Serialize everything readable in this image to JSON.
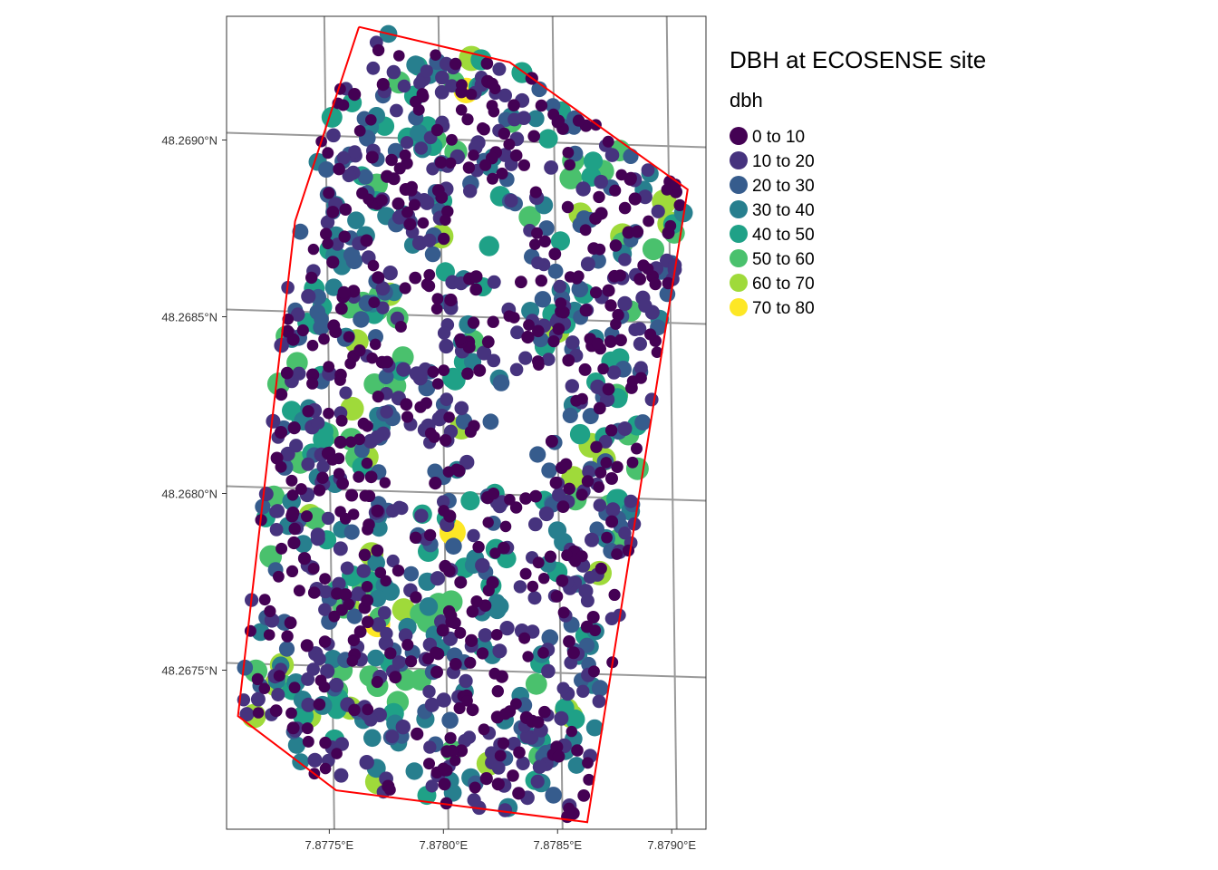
{
  "chart_data": {
    "type": "scatter",
    "title": "DBH at ECOSENSE site",
    "legend": {
      "title": "dbh",
      "placement": "right",
      "entries": [
        {
          "label": "0 to 10",
          "color": "#440154"
        },
        {
          "label": "10 to 20",
          "color": "#46337E"
        },
        {
          "label": "20 to 30",
          "color": "#365C8D"
        },
        {
          "label": "30 to 40",
          "color": "#277F8E"
        },
        {
          "label": "40 to 50",
          "color": "#1FA187"
        },
        {
          "label": "50 to 60",
          "color": "#4AC16D"
        },
        {
          "label": "60 to 70",
          "color": "#9FDA3A"
        },
        {
          "label": "70 to 80",
          "color": "#FDE725"
        }
      ]
    },
    "x_ticks": [
      "7.8775°E",
      "7.8780°E",
      "7.8785°E",
      "7.8790°E"
    ],
    "x_tick_values": [
      7.8775,
      7.878,
      7.8785,
      7.879
    ],
    "y_ticks": [
      "48.2675°N",
      "48.2680°N",
      "48.2685°N",
      "48.2690°N"
    ],
    "y_tick_values": [
      48.2675,
      48.268,
      48.2685,
      48.269
    ],
    "xlim": [
      7.87705,
      7.87915
    ],
    "ylim": [
      48.26705,
      48.26935
    ],
    "grid": true,
    "boundary": {
      "color": "#FF0000",
      "vertices": [
        [
          7.87763,
          48.26932
        ],
        [
          7.87829,
          48.26922
        ],
        [
          7.87907,
          48.26886
        ],
        [
          7.87863,
          48.26707
        ],
        [
          7.87753,
          48.26716
        ],
        [
          7.8771,
          48.26737
        ],
        [
          7.87735,
          48.26877
        ],
        [
          7.87763,
          48.26932
        ]
      ]
    },
    "points": [
      {
        "lon": 7.87771,
        "lat": 48.26763,
        "dbh": 74
      },
      {
        "lon": 7.87804,
        "lat": 48.26789,
        "dbh": 76
      },
      {
        "lon": 7.8781,
        "lat": 48.26914,
        "dbh": 72
      },
      {
        "lon": 7.8778,
        "lat": 48.26741,
        "dbh": 55
      },
      {
        "lon": 7.87772,
        "lat": 48.26856,
        "dbh": 53
      },
      {
        "lon": 7.8785,
        "lat": 48.26846,
        "dbh": 65
      },
      {
        "lon": 7.8786,
        "lat": 48.26879,
        "dbh": 62
      },
      {
        "lon": 7.87885,
        "lat": 48.26807,
        "dbh": 58
      },
      {
        "lon": 7.8779,
        "lat": 48.26766,
        "dbh": 52
      },
      {
        "lon": 7.8782,
        "lat": 48.2687,
        "dbh": 46
      }
    ]
  }
}
